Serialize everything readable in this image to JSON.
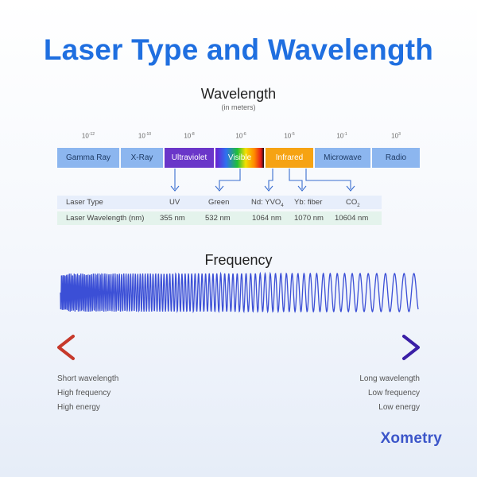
{
  "title": "Laser Type and Wavelength",
  "wavelength": {
    "heading": "Wavelength",
    "subheading": "(in meters)",
    "exponents": [
      {
        "base": "10",
        "exp": "-12"
      },
      {
        "base": "10",
        "exp": "-10"
      },
      {
        "base": "10",
        "exp": "-8"
      },
      {
        "base": "10",
        "exp": "-6"
      },
      {
        "base": "10",
        "exp": "-5"
      },
      {
        "base": "10",
        "exp": "-1"
      },
      {
        "base": "10",
        "exp": "3"
      }
    ],
    "bands": [
      "Gamma Ray",
      "X-Ray",
      "Ultraviolet",
      "Visible",
      "Infrared",
      "Microwave",
      "Radio"
    ]
  },
  "laser_table": {
    "type_label": "Laser Type",
    "wavelength_label": "Laser Wavelength (nm)",
    "types": [
      "UV",
      "Green",
      "Nd: YVO",
      "Yb: fiber",
      "CO"
    ],
    "type_subscripts": [
      "",
      "",
      "4",
      "",
      "2"
    ],
    "wavelengths": [
      "355 nm",
      "532 nm",
      "1064 nm",
      "1070 nm",
      "10604 nm"
    ]
  },
  "frequency": {
    "heading": "Frequency",
    "left_labels": [
      "Short wavelength",
      "High frequency",
      "High energy"
    ],
    "right_labels": [
      "Long wavelength",
      "Low frequency",
      "Low energy"
    ]
  },
  "colors": {
    "title": "#1f6fe0",
    "band_default": "#8cb6ef",
    "ultraviolet": "#6a36c9",
    "infrared": "#f6a313",
    "wave": "#3b4fd6",
    "arrow_left": "#c6392b",
    "arrow_right": "#3a1fa6"
  },
  "brand": "Xometry"
}
